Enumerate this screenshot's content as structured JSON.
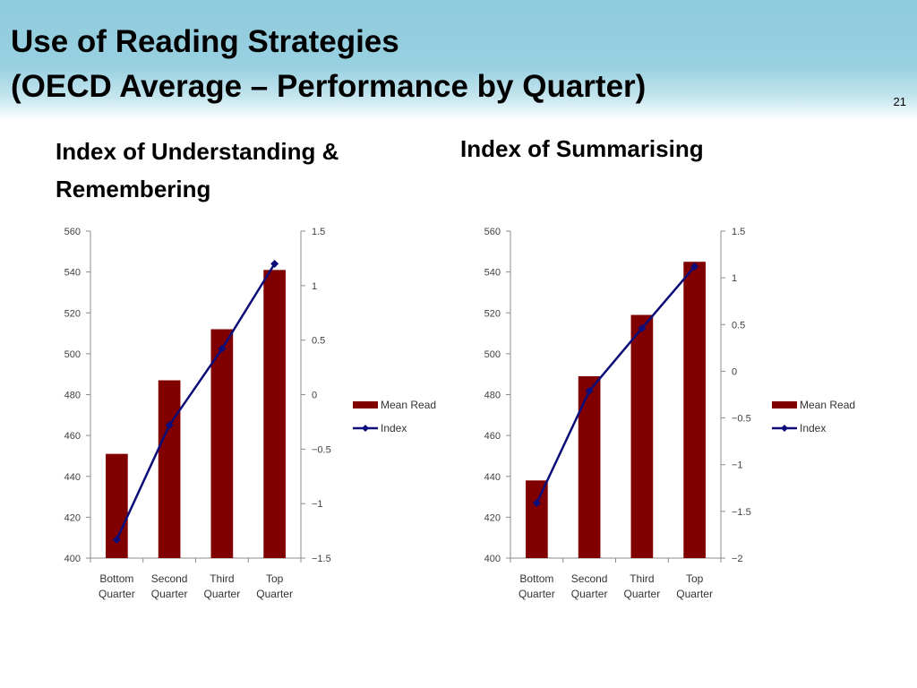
{
  "slide": {
    "title_line1": "Use of Reading Strategies",
    "title_line2": "(OECD Average – Performance by Quarter)",
    "page_number": "21"
  },
  "colors": {
    "bar": "#800000",
    "line": "#0d0d7a",
    "axis": "#8c8c8c",
    "title_band": "#93cde0"
  },
  "chart_data": [
    {
      "type": "bar",
      "title": "Index of Understanding & Remembering",
      "categories": [
        [
          "Bottom",
          "Quarter"
        ],
        [
          "Second",
          "Quarter"
        ],
        [
          "Third",
          "Quarter"
        ],
        [
          "Top",
          "Quarter"
        ]
      ],
      "y_left": {
        "min": 400,
        "max": 560,
        "ticks": [
          400,
          420,
          440,
          460,
          480,
          500,
          520,
          540,
          560
        ]
      },
      "y_right": {
        "min": -1.5,
        "max": 1.5,
        "ticks": [
          -1.5,
          -1,
          -0.5,
          0,
          0.5,
          1,
          1.5
        ]
      },
      "series": [
        {
          "name": "Mean Read",
          "type": "bar",
          "axis": "left",
          "values": [
            451,
            487,
            512,
            541
          ]
        },
        {
          "name": "Index",
          "type": "line",
          "axis": "right",
          "values": [
            -1.33,
            -0.28,
            0.42,
            1.2
          ]
        }
      ],
      "legend": "right",
      "grid": false
    },
    {
      "type": "bar",
      "title": "Index of Summarising",
      "categories": [
        [
          "Bottom",
          "Quarter"
        ],
        [
          "Second",
          "Quarter"
        ],
        [
          "Third",
          "Quarter"
        ],
        [
          "Top",
          "Quarter"
        ]
      ],
      "y_left": {
        "min": 400,
        "max": 560,
        "ticks": [
          400,
          420,
          440,
          460,
          480,
          500,
          520,
          540,
          560
        ]
      },
      "y_right": {
        "min": -2,
        "max": 1.5,
        "ticks": [
          -2,
          -1.5,
          -1,
          -0.5,
          0,
          0.5,
          1,
          1.5
        ]
      },
      "series": [
        {
          "name": "Mean Read",
          "type": "bar",
          "axis": "left",
          "values": [
            438,
            489,
            519,
            545
          ]
        },
        {
          "name": "Index",
          "type": "line",
          "axis": "right",
          "values": [
            -1.41,
            -0.21,
            0.46,
            1.12
          ]
        }
      ],
      "legend": "right",
      "grid": false
    }
  ]
}
